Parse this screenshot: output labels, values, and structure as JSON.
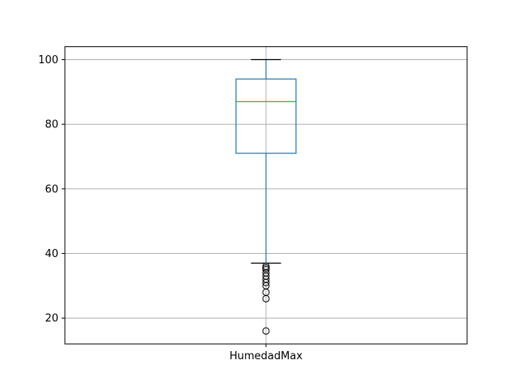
{
  "chart_data": {
    "type": "box",
    "categories": [
      "HumedadMax"
    ],
    "ylim": [
      12,
      104
    ],
    "yticks": [
      20,
      40,
      60,
      80,
      100
    ],
    "grid": true,
    "boxes": [
      {
        "name": "HumedadMax",
        "whisker_low": 37,
        "q1": 71,
        "median": 87,
        "q3": 94,
        "whisker_high": 100,
        "outliers": [
          36,
          35.5,
          35,
          34,
          33,
          32,
          31,
          30,
          28,
          26,
          16
        ]
      }
    ]
  },
  "colors": {
    "box": "#1f77b4",
    "median": "#2ca02c",
    "outlier": "#000000",
    "grid": "#b0b0b0"
  }
}
